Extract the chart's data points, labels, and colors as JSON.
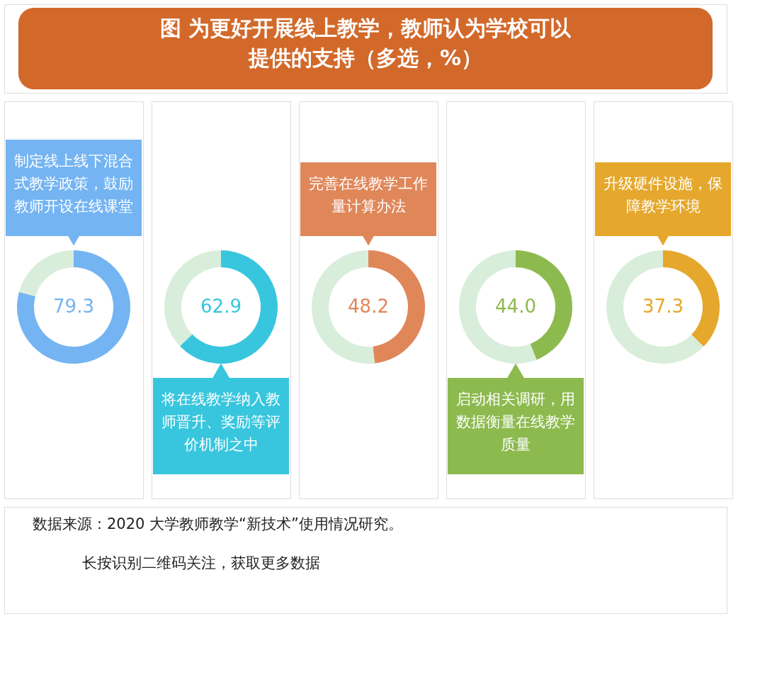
{
  "chart_data": [
    {
      "type": "other",
      "title": "图  为更好开展线上教学，教师认为学校可以提供的支持（多选，%）",
      "annotations": [
        "数据来源：2020 大学教师教学“新技术”使用情况研究。",
        "长按识别二维码关注，获取更多数据"
      ]
    },
    {
      "type": "donut",
      "categories": [
        "制定线上线下混合式教学政策，鼓励教师开设在线课堂",
        null
      ],
      "values": [
        79.3,
        20.7
      ],
      "colors": [
        "#74b4f2",
        "#d8eedb"
      ],
      "value_labels": [
        "79.3",
        null
      ]
    },
    {
      "type": "donut",
      "categories": [
        "将在线教学纳入教师晋升、奖励等评价机制之中",
        null
      ],
      "values": [
        62.9,
        37.1
      ],
      "colors": [
        "#38c6de",
        "#d8eedb"
      ],
      "value_labels": [
        "62.9",
        null
      ]
    },
    {
      "type": "donut",
      "categories": [
        "完善在线教学工作量计算办法",
        null
      ],
      "values": [
        48.2,
        51.8
      ],
      "colors": [
        "#e0875a",
        "#d8eedb"
      ],
      "value_labels": [
        "48.2",
        null
      ]
    },
    {
      "type": "donut",
      "categories": [
        "启动相关调研，用数据衡量在线教学质量",
        null
      ],
      "values": [
        44.0,
        56.0
      ],
      "colors": [
        "#8dba4f",
        "#d8eedb"
      ],
      "value_labels": [
        "44.0",
        null
      ]
    },
    {
      "type": "donut",
      "categories": [
        "升级硬件设施，保障教学环境",
        null
      ],
      "values": [
        37.3,
        62.7
      ],
      "colors": [
        "#e5a82c",
        "#d8eedb"
      ],
      "value_labels": [
        "37.3",
        null
      ]
    }
  ]
}
